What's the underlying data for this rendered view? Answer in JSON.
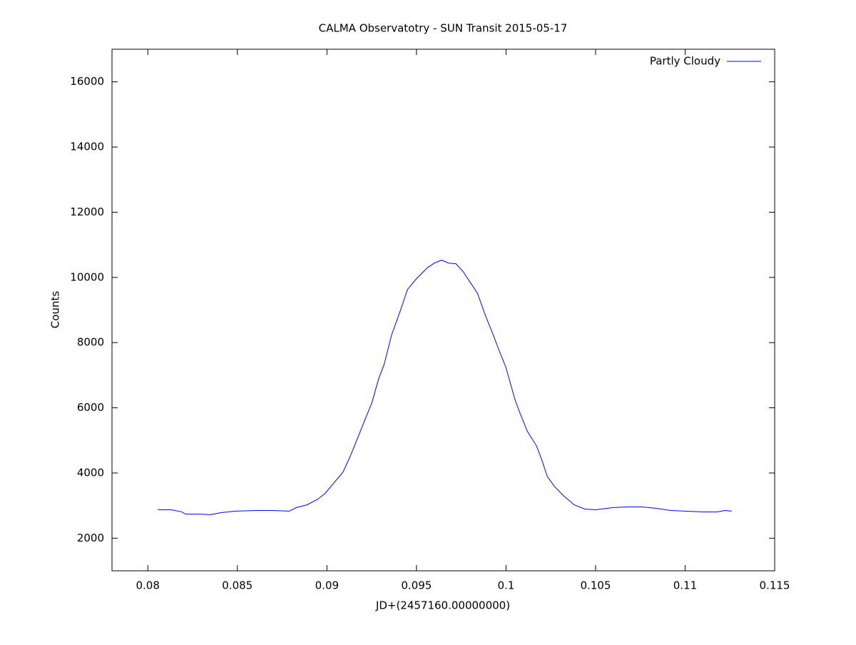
{
  "chart_data": {
    "type": "line",
    "title": "CALMA Observatotry - SUN Transit 2015-05-17",
    "x_label": "JD+(2457160.00000000)",
    "y_label": "Counts",
    "legend": "top right",
    "xlim": [
      0.078,
      0.115
    ],
    "ylim": [
      1000,
      17000
    ],
    "xticks": [
      0.08,
      0.085,
      0.09,
      0.095,
      0.1,
      0.105,
      0.11,
      0.115
    ],
    "yticks": [
      2000,
      4000,
      6000,
      8000,
      10000,
      12000,
      14000,
      16000
    ],
    "x": [
      0.08056,
      0.08131,
      0.0819,
      0.0821,
      0.0829,
      0.0835,
      0.0841,
      0.0849,
      0.0861,
      0.0865,
      0.0869,
      0.0879,
      0.0883,
      0.0889,
      0.0895,
      0.0899,
      0.0903,
      0.0909,
      0.0913,
      0.0917,
      0.0921,
      0.0925,
      0.0929,
      0.0932,
      0.0936,
      0.0941,
      0.0945,
      0.095,
      0.0956,
      0.096,
      0.0964,
      0.0968,
      0.0972,
      0.0976,
      0.098,
      0.0984,
      0.0989,
      0.0993,
      0.0996,
      0.1,
      0.1005,
      0.1008,
      0.1012,
      0.1017,
      0.102,
      0.1023,
      0.1027,
      0.1032,
      0.1038,
      0.1044,
      0.105,
      0.106,
      0.1068,
      0.1076,
      0.1084,
      0.1092,
      0.11,
      0.111,
      0.1118,
      0.1122,
      0.1126
    ],
    "series": [
      {
        "name": "Partly Cloudy",
        "color": "#0000ff",
        "values": [
          2872,
          2872,
          2807,
          2740,
          2740,
          2720,
          2785,
          2830,
          2850,
          2850,
          2850,
          2830,
          2940,
          3025,
          3200,
          3375,
          3635,
          4030,
          4510,
          5050,
          5600,
          6140,
          6905,
          7340,
          8215,
          8980,
          9630,
          9960,
          10290,
          10440,
          10530,
          10440,
          10420,
          10180,
          9850,
          9520,
          8760,
          8215,
          7780,
          7230,
          6250,
          5810,
          5270,
          4835,
          4400,
          3900,
          3590,
          3310,
          3025,
          2894,
          2872,
          2940,
          2960,
          2960,
          2916,
          2850,
          2830,
          2807,
          2807,
          2850,
          2830
        ]
      }
    ]
  }
}
